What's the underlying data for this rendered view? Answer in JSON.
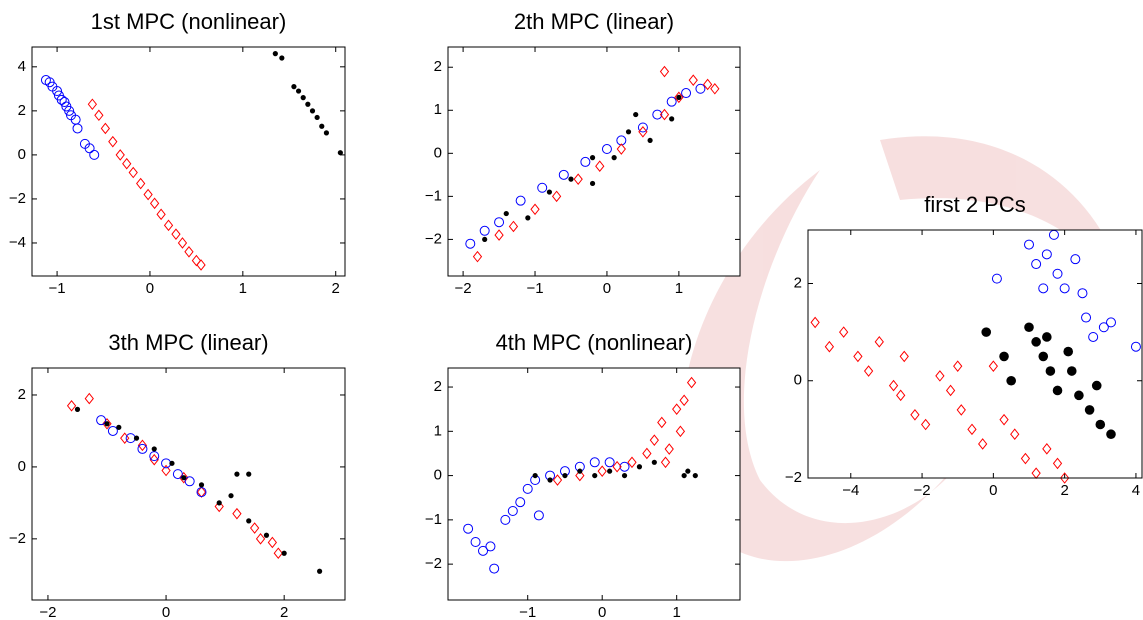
{
  "chart_data": [
    {
      "type": "scatter",
      "title": "1st MPC (nonlinear)",
      "xlim": [
        -1.27,
        2.1
      ],
      "ylim": [
        -5.5,
        4.9
      ],
      "xticks": [
        {
          "value": -1,
          "label": "−1"
        },
        0,
        1,
        2
      ],
      "yticks": [
        {
          "value": -4,
          "label": "−4"
        },
        {
          "value": -2,
          "label": "−2"
        },
        0,
        2,
        4
      ],
      "series": [
        {
          "color": "#0000ff",
          "marker": "circle",
          "x": [
            -1.12,
            -1.08,
            -1.05,
            -1.0,
            -0.98,
            -0.95,
            -0.92,
            -0.9,
            -0.87,
            -0.85,
            -0.8,
            -0.78,
            -0.7,
            -0.65,
            -0.6
          ],
          "y": [
            3.4,
            3.3,
            3.1,
            2.9,
            2.7,
            2.5,
            2.4,
            2.2,
            2.0,
            1.8,
            1.6,
            1.2,
            0.5,
            0.3,
            0.0
          ]
        },
        {
          "color": "#ff0000",
          "marker": "diamond",
          "x": [
            -0.62,
            -0.55,
            -0.48,
            -0.4,
            -0.32,
            -0.25,
            -0.18,
            -0.1,
            -0.02,
            0.05,
            0.12,
            0.2,
            0.28,
            0.35,
            0.42,
            0.5,
            0.55
          ],
          "y": [
            2.3,
            1.8,
            1.2,
            0.6,
            0.0,
            -0.4,
            -0.8,
            -1.3,
            -1.8,
            -2.2,
            -2.7,
            -3.2,
            -3.6,
            -4.0,
            -4.4,
            -4.8,
            -5.0
          ]
        },
        {
          "color": "#000000",
          "marker": "dot",
          "x": [
            1.35,
            1.42,
            1.55,
            1.6,
            1.65,
            1.7,
            1.75,
            1.8,
            1.85,
            1.9,
            2.05
          ],
          "y": [
            4.6,
            4.4,
            3.1,
            2.9,
            2.6,
            2.3,
            2.0,
            1.7,
            1.3,
            1.0,
            0.1
          ]
        }
      ]
    },
    {
      "type": "scatter",
      "title": "2th MPC (linear)",
      "xlim": [
        -2.21,
        1.85
      ],
      "ylim": [
        -2.85,
        2.47
      ],
      "xticks": [
        {
          "value": -2,
          "label": "−2"
        },
        {
          "value": -1,
          "label": "−1"
        },
        0,
        1
      ],
      "yticks": [
        {
          "value": -2,
          "label": "−2"
        },
        {
          "value": -1,
          "label": "−1"
        },
        0,
        1,
        2
      ],
      "series": [
        {
          "color": "#0000ff",
          "marker": "circle",
          "x": [
            -1.9,
            -1.7,
            -1.5,
            -1.2,
            -0.9,
            -0.6,
            -0.3,
            0,
            0.2,
            0.5,
            0.7,
            0.9,
            1.1,
            1.3
          ],
          "y": [
            -2.1,
            -1.8,
            -1.6,
            -1.1,
            -0.8,
            -0.5,
            -0.2,
            0.1,
            0.3,
            0.6,
            0.9,
            1.2,
            1.4,
            1.5
          ]
        },
        {
          "color": "#ff0000",
          "marker": "diamond",
          "x": [
            -1.8,
            -1.5,
            -1.3,
            -1.0,
            -0.7,
            -0.4,
            -0.1,
            0.2,
            0.5,
            0.8,
            1.0,
            1.2,
            1.4,
            1.5,
            0.8
          ],
          "y": [
            -2.4,
            -1.9,
            -1.7,
            -1.3,
            -1.0,
            -0.6,
            -0.3,
            0.1,
            0.5,
            0.9,
            1.3,
            1.7,
            1.6,
            1.5,
            1.9
          ]
        },
        {
          "color": "#000000",
          "marker": "dot",
          "x": [
            -1.7,
            -1.4,
            -1.1,
            -0.8,
            -0.5,
            -0.2,
            0.1,
            0.3,
            0.6,
            0.9,
            1.0,
            -0.2,
            0.4
          ],
          "y": [
            -2.0,
            -1.4,
            -1.5,
            -0.9,
            -0.6,
            -0.1,
            -0.1,
            0.5,
            0.3,
            0.8,
            1.3,
            -0.7,
            0.9
          ]
        }
      ]
    },
    {
      "type": "scatter",
      "title": "3th MPC (linear)",
      "xlim": [
        -2.27,
        3.03
      ],
      "ylim": [
        -3.7,
        2.75
      ],
      "xticks": [
        {
          "value": -2,
          "label": "−2"
        },
        0,
        2
      ],
      "yticks": [
        {
          "value": -2,
          "label": "−2"
        },
        0,
        2
      ],
      "series": [
        {
          "color": "#ff0000",
          "marker": "diamond",
          "x": [
            -1.6,
            -1.3,
            -1.0,
            -0.7,
            -0.4,
            -0.2,
            0,
            0.3,
            0.6,
            0.9,
            1.2,
            1.5,
            1.8,
            1.9,
            1.6
          ],
          "y": [
            1.7,
            1.9,
            1.2,
            0.8,
            0.6,
            0.2,
            -0.1,
            -0.3,
            -0.7,
            -1.1,
            -1.3,
            -1.7,
            -2.1,
            -2.4,
            -2.0
          ]
        },
        {
          "color": "#0000ff",
          "marker": "circle",
          "x": [
            -1.1,
            -0.9,
            -0.6,
            -0.4,
            -0.2,
            0,
            0.2,
            0.4,
            0.6
          ],
          "y": [
            1.3,
            1.0,
            0.8,
            0.5,
            0.3,
            0.1,
            -0.2,
            -0.4,
            -0.7
          ]
        },
        {
          "color": "#000000",
          "marker": "dot",
          "x": [
            -1.5,
            -1.0,
            -0.8,
            -0.5,
            -0.2,
            0.1,
            0.3,
            0.6,
            0.9,
            1.1,
            1.4,
            1.7,
            2.0,
            2.6,
            1.2,
            1.4
          ],
          "y": [
            1.6,
            1.2,
            1.1,
            0.8,
            0.5,
            0.1,
            -0.3,
            -0.5,
            -1.0,
            -0.8,
            -1.5,
            -1.9,
            -2.4,
            -2.9,
            -0.2,
            -0.2
          ]
        }
      ]
    },
    {
      "type": "scatter",
      "title": "4th MPC (nonlinear)",
      "xlim": [
        -2.07,
        1.85
      ],
      "ylim": [
        -2.81,
        2.43
      ],
      "xticks": [
        {
          "value": -1,
          "label": "−1"
        },
        0,
        1
      ],
      "yticks": [
        {
          "value": -2,
          "label": "−2"
        },
        {
          "value": -1,
          "label": "−1"
        },
        0,
        1,
        2
      ],
      "series": [
        {
          "color": "#0000ff",
          "marker": "circle",
          "x": [
            -1.8,
            -1.7,
            -1.6,
            -1.5,
            -1.45,
            -1.3,
            -1.2,
            -1.1,
            -1.0,
            -0.9,
            -0.85,
            -0.7,
            -0.5,
            -0.3,
            -0.1,
            0.1,
            0.3
          ],
          "y": [
            -1.2,
            -1.5,
            -1.7,
            -1.6,
            -2.1,
            -1.0,
            -0.8,
            -0.6,
            -0.3,
            -0.1,
            -0.9,
            0.0,
            0.1,
            0.2,
            0.3,
            0.3,
            0.2
          ]
        },
        {
          "color": "#ff0000",
          "marker": "diamond",
          "x": [
            -0.6,
            -0.3,
            0,
            0.2,
            0.4,
            0.6,
            0.7,
            0.8,
            0.9,
            1.0,
            1.1,
            1.2,
            0.85,
            1.05
          ],
          "y": [
            -0.1,
            0.0,
            0.1,
            0.2,
            0.3,
            0.5,
            0.8,
            1.2,
            0.6,
            1.5,
            1.7,
            2.1,
            0.3,
            1.0
          ]
        },
        {
          "color": "#000000",
          "marker": "dot",
          "x": [
            -0.9,
            -0.7,
            -0.5,
            -0.3,
            -0.1,
            0.1,
            0.3,
            0.5,
            0.7,
            1.1,
            1.15,
            1.25
          ],
          "y": [
            0.0,
            -0.1,
            0.0,
            0.1,
            0.0,
            0.1,
            0.0,
            0.2,
            0.3,
            0.0,
            0.1,
            0.0
          ]
        }
      ]
    },
    {
      "type": "scatter",
      "title": "first 2 PCs",
      "xlim": [
        -5.2,
        4.17
      ],
      "ylim": [
        -2,
        3.1
      ],
      "xticks": [
        {
          "value": -4,
          "label": "−4"
        },
        {
          "value": -2,
          "label": "−2"
        },
        0,
        2,
        4
      ],
      "yticks": [
        {
          "value": -2,
          "label": "−2"
        },
        0,
        2
      ],
      "series": [
        {
          "color": "#ff0000",
          "marker": "diamond",
          "x": [
            -5.0,
            -4.6,
            -4.2,
            -3.8,
            -3.5,
            -3.2,
            -2.8,
            -2.5,
            -2.2,
            -1.9,
            -1.5,
            -1.2,
            -0.9,
            -0.6,
            -0.3,
            0,
            0.3,
            0.6,
            0.9,
            1.2,
            1.5,
            1.8,
            2.0,
            -1.0,
            -2.6
          ],
          "y": [
            1.2,
            0.7,
            1.0,
            0.5,
            0.2,
            0.8,
            -0.1,
            0.5,
            -0.7,
            -0.9,
            0.1,
            -0.2,
            -0.6,
            -1.0,
            -1.3,
            0.3,
            -0.8,
            -1.1,
            -1.6,
            -1.9,
            -1.4,
            -1.7,
            -2.0,
            0.3,
            -0.3
          ]
        },
        {
          "color": "#0000ff",
          "marker": "circle",
          "x": [
            0.1,
            1.0,
            1.2,
            1.5,
            1.8,
            2.0,
            2.3,
            2.5,
            1.4,
            2.8,
            3.1,
            2.6,
            4.0,
            3.3,
            1.7
          ],
          "y": [
            2.1,
            2.8,
            2.4,
            2.6,
            2.2,
            1.9,
            2.5,
            1.8,
            1.9,
            0.9,
            1.1,
            1.3,
            0.7,
            1.2,
            3.0
          ]
        },
        {
          "color": "#000000",
          "marker": "bigdot",
          "x": [
            -0.2,
            0.3,
            0.5,
            1.0,
            1.2,
            1.4,
            1.6,
            1.8,
            2.1,
            2.4,
            2.7,
            3.0,
            3.3,
            2.2,
            1.5,
            2.9
          ],
          "y": [
            1.0,
            0.5,
            0.0,
            1.1,
            0.8,
            0.5,
            0.2,
            -0.2,
            0.6,
            -0.3,
            -0.6,
            -0.9,
            -1.1,
            0.2,
            0.9,
            -0.1
          ]
        }
      ]
    }
  ]
}
